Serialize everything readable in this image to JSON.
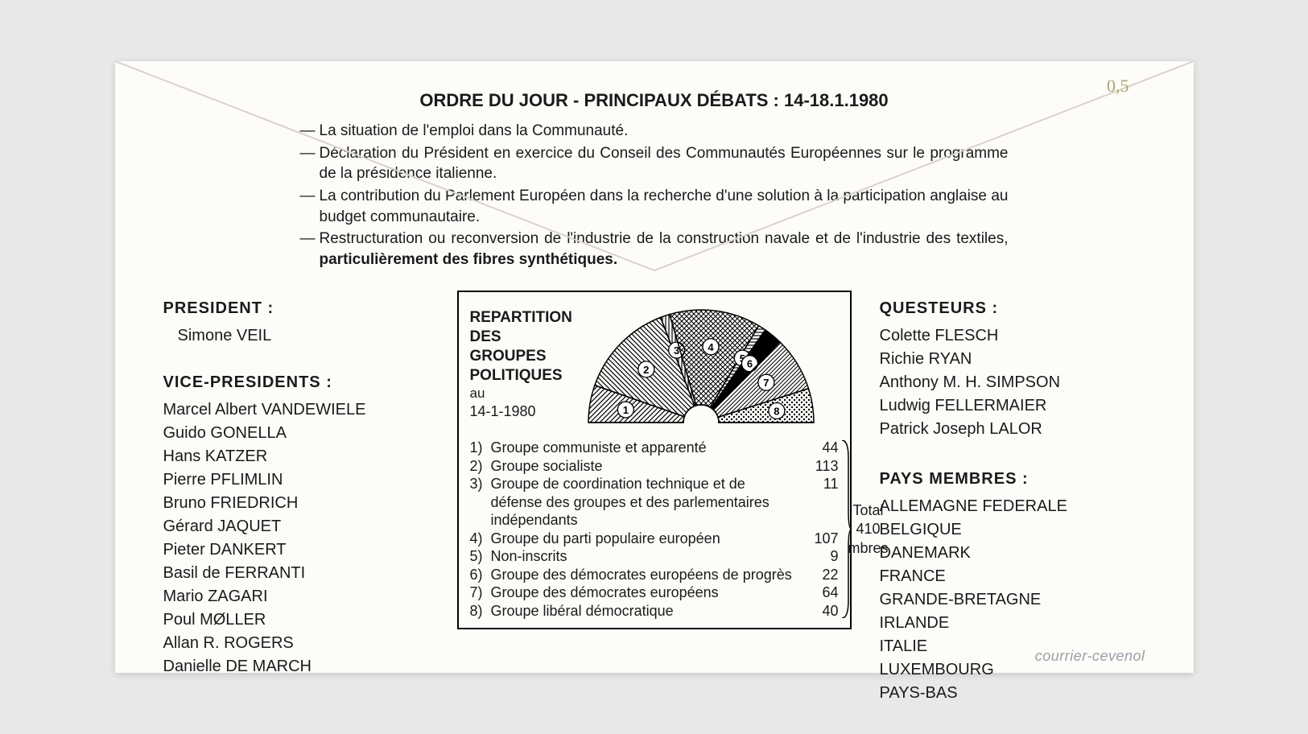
{
  "title": "ORDRE DU JOUR - PRINCIPAUX DÉBATS : 14-18.1.1980",
  "handnote": "0,5",
  "agenda": [
    {
      "text": "La situation de l'emploi dans la Communauté."
    },
    {
      "text": "Déclaration du Président en exercice du Conseil des Communautés Européennes sur le programme de la présidence italienne."
    },
    {
      "text": "La contribution du Parlement Européen dans la recherche d'une solution à la participation anglaise au budget communautaire."
    },
    {
      "text_html": "Restructuration ou reconversion de l'industrie de la construction navale et de l'industrie des textiles, <b>particulièrement des fibres synthétiques.</b>"
    }
  ],
  "president": {
    "title": "PRESIDENT :",
    "name": "Simone VEIL"
  },
  "vice_presidents": {
    "title": "VICE-PRESIDENTS :",
    "names": [
      "Marcel Albert VANDEWIELE",
      "Guido GONELLA",
      "Hans KATZER",
      "Pierre PFLIMLIN",
      "Bruno FRIEDRICH",
      "Gérard JAQUET",
      "Pieter DANKERT",
      "Basil de FERRANTI",
      "Mario ZAGARI",
      "Poul MØLLER",
      "Allan R. ROGERS",
      "Danielle DE MARCH"
    ]
  },
  "questeurs": {
    "title": "QUESTEURS :",
    "names": [
      "Colette FLESCH",
      "Richie RYAN",
      "Anthony M. H. SIMPSON",
      "Ludwig FELLERMAIER",
      "Patrick Joseph LALOR"
    ]
  },
  "pays": {
    "title": "PAYS MEMBRES :",
    "names": [
      "ALLEMAGNE FEDERALE",
      "BELGIQUE",
      "DANEMARK",
      "FRANCE",
      "GRANDE-BRETAGNE",
      "IRLANDE",
      "ITALIE",
      "LUXEMBOURG",
      "PAYS-BAS"
    ]
  },
  "chart": {
    "title_lines": [
      "REPARTITION",
      "DES",
      "GROUPES",
      "POLITIQUES"
    ],
    "au": "au",
    "date": "14-1-1980",
    "type": "semicircle",
    "total_label": "Total",
    "total_value": 410,
    "total_unit": "mbres",
    "background_color": "#ffffff",
    "stroke_color": "#000000",
    "slices": [
      {
        "n": 1,
        "label": "Groupe communiste et apparenté",
        "value": 44,
        "pattern": "hatch-diag"
      },
      {
        "n": 2,
        "label": "Groupe socialiste",
        "value": 113,
        "pattern": "hatch-diag2"
      },
      {
        "n": 3,
        "label": "Groupe de coordination technique et de défense des groupes et des parlementaires indépendants",
        "value": 11,
        "pattern": "hatch-vert"
      },
      {
        "n": 4,
        "label": "Groupe du parti populaire européen",
        "value": 107,
        "pattern": "crosshatch"
      },
      {
        "n": 5,
        "label": "Non-inscrits",
        "value": 9,
        "pattern": "hatch-horiz"
      },
      {
        "n": 6,
        "label": "Groupe des démocrates européens de progrès",
        "value": 22,
        "pattern": "solid"
      },
      {
        "n": 7,
        "label": "Groupe des démocrates européens",
        "value": 64,
        "pattern": "hatch-diag3"
      },
      {
        "n": 8,
        "label": "Groupe libéral démocratique",
        "value": 40,
        "pattern": "dots"
      }
    ]
  },
  "watermark": "courrier-cevenol"
}
